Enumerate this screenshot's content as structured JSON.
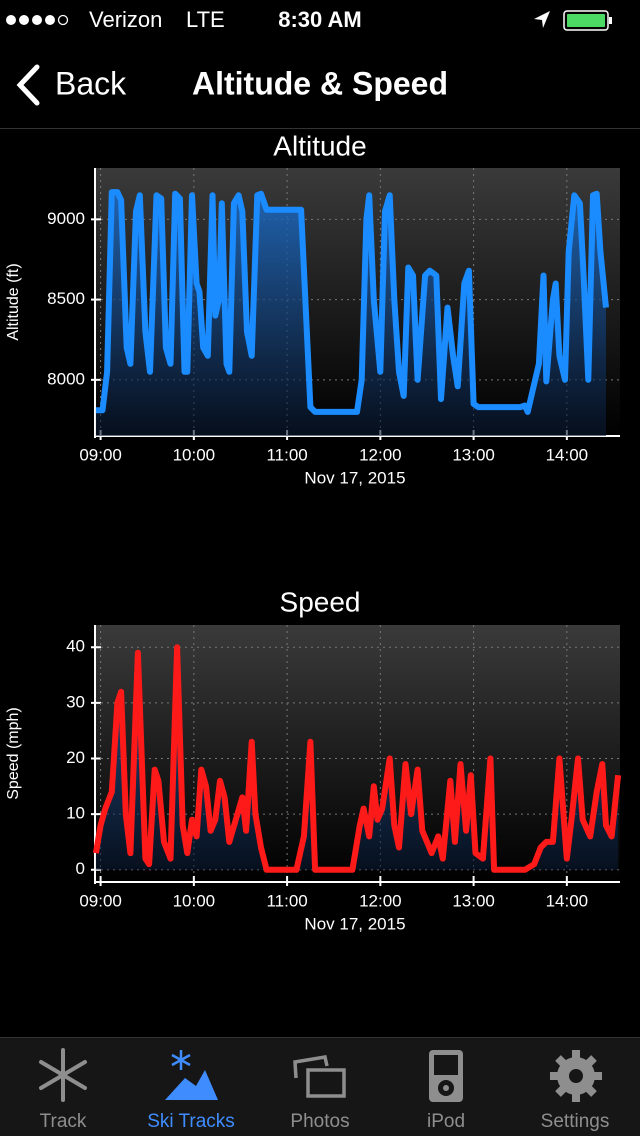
{
  "status_bar": {
    "carrier": "Verizon",
    "network": "LTE",
    "time": "8:30 AM"
  },
  "nav": {
    "back": "Back",
    "title": "Altitude & Speed"
  },
  "chart_data": [
    {
      "type": "line",
      "title": "Altitude",
      "y_label": "Altitude (ft)",
      "x_label": "Nov 17, 2015",
      "color": "#1a8cff",
      "grid": true,
      "xlim": [
        8.94,
        14.57
      ],
      "ylim": [
        7650,
        9320
      ],
      "xticks": [
        {
          "value": 9,
          "label": "09:00"
        },
        {
          "value": 10,
          "label": "10:00"
        },
        {
          "value": 11,
          "label": "11:00"
        },
        {
          "value": 12,
          "label": "12:00"
        },
        {
          "value": 13,
          "label": "13:00"
        },
        {
          "value": 14,
          "label": "14:00"
        }
      ],
      "yticks": [
        8000,
        8500,
        9000
      ],
      "x": [
        8.95,
        9.02,
        9.07,
        9.12,
        9.18,
        9.22,
        9.28,
        9.32,
        9.38,
        9.42,
        9.48,
        9.53,
        9.6,
        9.65,
        9.7,
        9.75,
        9.8,
        9.85,
        9.9,
        9.93,
        9.98,
        10.03,
        10.06,
        10.1,
        10.15,
        10.2,
        10.23,
        10.27,
        10.3,
        10.35,
        10.38,
        10.43,
        10.48,
        10.52,
        10.57,
        10.62,
        10.68,
        10.72,
        10.78,
        11.15,
        11.25,
        11.3,
        11.75,
        11.8,
        11.85,
        11.88,
        11.93,
        12.0,
        12.05,
        12.1,
        12.15,
        12.2,
        12.25,
        12.3,
        12.35,
        12.4,
        12.48,
        12.53,
        12.6,
        12.65,
        12.72,
        12.78,
        12.83,
        12.9,
        12.95,
        13.0,
        13.05,
        13.5,
        13.55,
        13.58,
        13.62,
        13.7,
        13.75,
        13.78,
        13.85,
        13.88,
        13.92,
        13.98,
        14.02,
        14.08,
        14.14,
        14.18,
        14.23,
        14.28,
        14.32,
        14.36,
        14.42
      ],
      "values": [
        7810,
        7810,
        8050,
        9170,
        9170,
        9120,
        8200,
        8100,
        9050,
        9150,
        8300,
        8050,
        9150,
        9130,
        8200,
        8100,
        9160,
        9130,
        8050,
        8050,
        9150,
        8600,
        8550,
        8200,
        8150,
        9150,
        8400,
        8500,
        9100,
        8100,
        8050,
        9100,
        9150,
        9050,
        8300,
        8150,
        9150,
        9160,
        9060,
        9060,
        7830,
        7800,
        7800,
        8000,
        9000,
        9150,
        8500,
        8050,
        9050,
        9150,
        8500,
        8050,
        7900,
        8700,
        8650,
        8000,
        8650,
        8680,
        8650,
        7880,
        8450,
        8150,
        7960,
        8600,
        8680,
        7850,
        7830,
        7830,
        7840,
        7800,
        7900,
        8100,
        8650,
        7990,
        8500,
        8600,
        8150,
        8000,
        8800,
        9150,
        9100,
        8650,
        8000,
        9150,
        9160,
        8800,
        8450
      ]
    },
    {
      "type": "line",
      "title": "Speed",
      "y_label": "Speed (mph)",
      "x_label": "Nov 17, 2015",
      "color": "#ff1a1a",
      "grid": true,
      "xlim": [
        8.94,
        14.57
      ],
      "ylim": [
        -2.2,
        44
      ],
      "xticks": [
        {
          "value": 9,
          "label": "09:00"
        },
        {
          "value": 10,
          "label": "10:00"
        },
        {
          "value": 11,
          "label": "11:00"
        },
        {
          "value": 12,
          "label": "12:00"
        },
        {
          "value": 13,
          "label": "13:00"
        },
        {
          "value": 14,
          "label": "14:00"
        }
      ],
      "yticks": [
        0,
        10,
        20,
        30,
        40
      ],
      "x": [
        8.95,
        9.0,
        9.05,
        9.12,
        9.18,
        9.22,
        9.27,
        9.32,
        9.4,
        9.48,
        9.52,
        9.58,
        9.62,
        9.68,
        9.75,
        9.82,
        9.88,
        9.93,
        9.98,
        10.03,
        10.08,
        10.13,
        10.18,
        10.23,
        10.28,
        10.33,
        10.38,
        10.45,
        10.52,
        10.56,
        10.62,
        10.66,
        10.72,
        10.78,
        11.1,
        11.18,
        11.25,
        11.3,
        11.7,
        11.78,
        11.82,
        11.88,
        11.93,
        11.97,
        12.02,
        12.1,
        12.15,
        12.2,
        12.27,
        12.33,
        12.4,
        12.45,
        12.5,
        12.55,
        12.62,
        12.67,
        12.75,
        12.8,
        12.86,
        12.92,
        12.97,
        13.02,
        13.1,
        13.18,
        13.22,
        13.55,
        13.65,
        13.72,
        13.78,
        13.85,
        13.92,
        14.0,
        14.05,
        14.12,
        14.17,
        14.25,
        14.32,
        14.38,
        14.42,
        14.48,
        14.55
      ],
      "values": [
        3,
        8,
        11,
        14,
        30,
        32,
        10,
        3,
        39,
        2,
        1,
        18,
        16,
        5,
        2,
        40,
        8,
        3,
        9,
        6,
        18,
        15,
        7,
        9,
        16,
        13,
        5,
        9,
        13,
        7,
        23,
        10,
        4,
        0,
        0,
        6,
        23,
        0,
        0,
        8,
        11,
        6,
        15,
        9,
        11,
        20,
        8,
        4,
        19,
        10,
        18,
        7,
        5,
        3,
        6,
        2,
        16,
        5,
        19,
        7,
        17,
        3,
        2,
        20,
        0,
        0,
        1,
        4,
        5,
        5,
        20,
        2,
        9,
        20,
        9,
        6,
        14,
        19,
        8,
        6,
        17
      ]
    }
  ],
  "tab_bar": {
    "items": [
      "Track",
      "Ski Tracks",
      "Photos",
      "iPod",
      "Settings"
    ]
  }
}
